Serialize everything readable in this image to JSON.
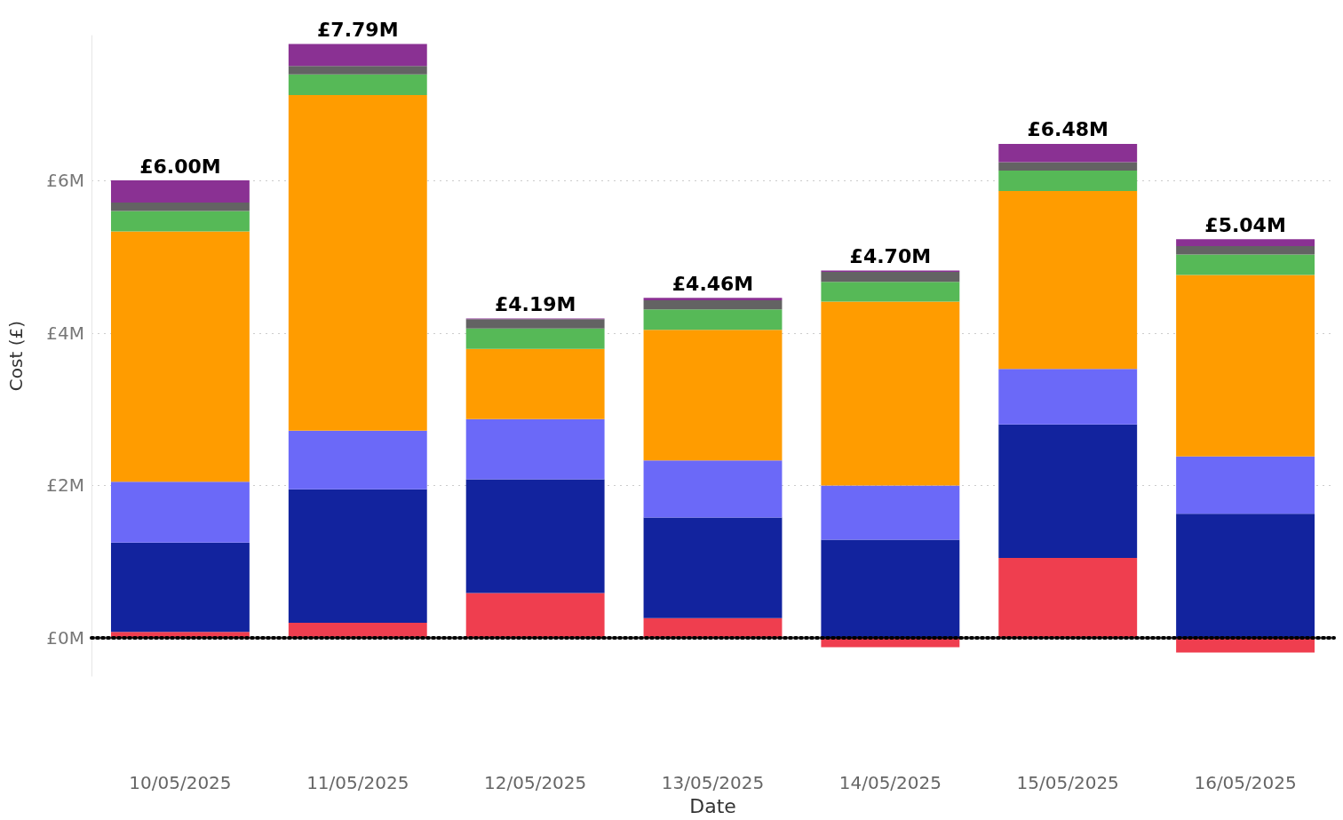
{
  "chart_data": {
    "type": "bar",
    "xlabel": "Date",
    "ylabel": "Cost (£)",
    "categories": [
      "10/05/2025",
      "11/05/2025",
      "12/05/2025",
      "13/05/2025",
      "14/05/2025",
      "15/05/2025",
      "16/05/2025"
    ],
    "stacked": true,
    "series": [
      {
        "color": "#ef3e4f",
        "values": [
          0.08,
          0.2,
          0.59,
          0.26,
          -0.12,
          1.05,
          -0.19
        ]
      },
      {
        "color": "#12239e",
        "values": [
          1.17,
          1.75,
          1.49,
          1.32,
          1.29,
          1.75,
          1.63
        ]
      },
      {
        "color": "#6b69f8",
        "values": [
          0.8,
          0.77,
          0.79,
          0.75,
          0.71,
          0.73,
          0.75
        ]
      },
      {
        "color": "#ff9c00",
        "values": [
          3.28,
          4.4,
          0.92,
          1.71,
          2.41,
          2.33,
          2.38
        ]
      },
      {
        "color": "#56b957",
        "values": [
          0.27,
          0.27,
          0.27,
          0.27,
          0.26,
          0.27,
          0.27
        ]
      },
      {
        "color": "#636363",
        "values": [
          0.11,
          0.11,
          0.12,
          0.12,
          0.13,
          0.11,
          0.11
        ]
      },
      {
        "color": "#8a3193",
        "values": [
          0.29,
          0.29,
          0.01,
          0.03,
          0.02,
          0.24,
          0.09
        ]
      }
    ],
    "totals": [
      "£6.00M",
      "£7.79M",
      "£4.19M",
      "£4.46M",
      "£4.70M",
      "£6.48M",
      "£5.04M"
    ],
    "ylim": [
      -0.5,
      7.9
    ],
    "yticks": [
      {
        "value": 0,
        "label": "£0M"
      },
      {
        "value": 2,
        "label": "£2M"
      },
      {
        "value": 4,
        "label": "£4M"
      },
      {
        "value": 6,
        "label": "£6M"
      }
    ],
    "grid": "y",
    "ref_lines": [
      {
        "axis": "y",
        "value": 0,
        "color": "#000000",
        "line_style": "dotted"
      }
    ]
  }
}
